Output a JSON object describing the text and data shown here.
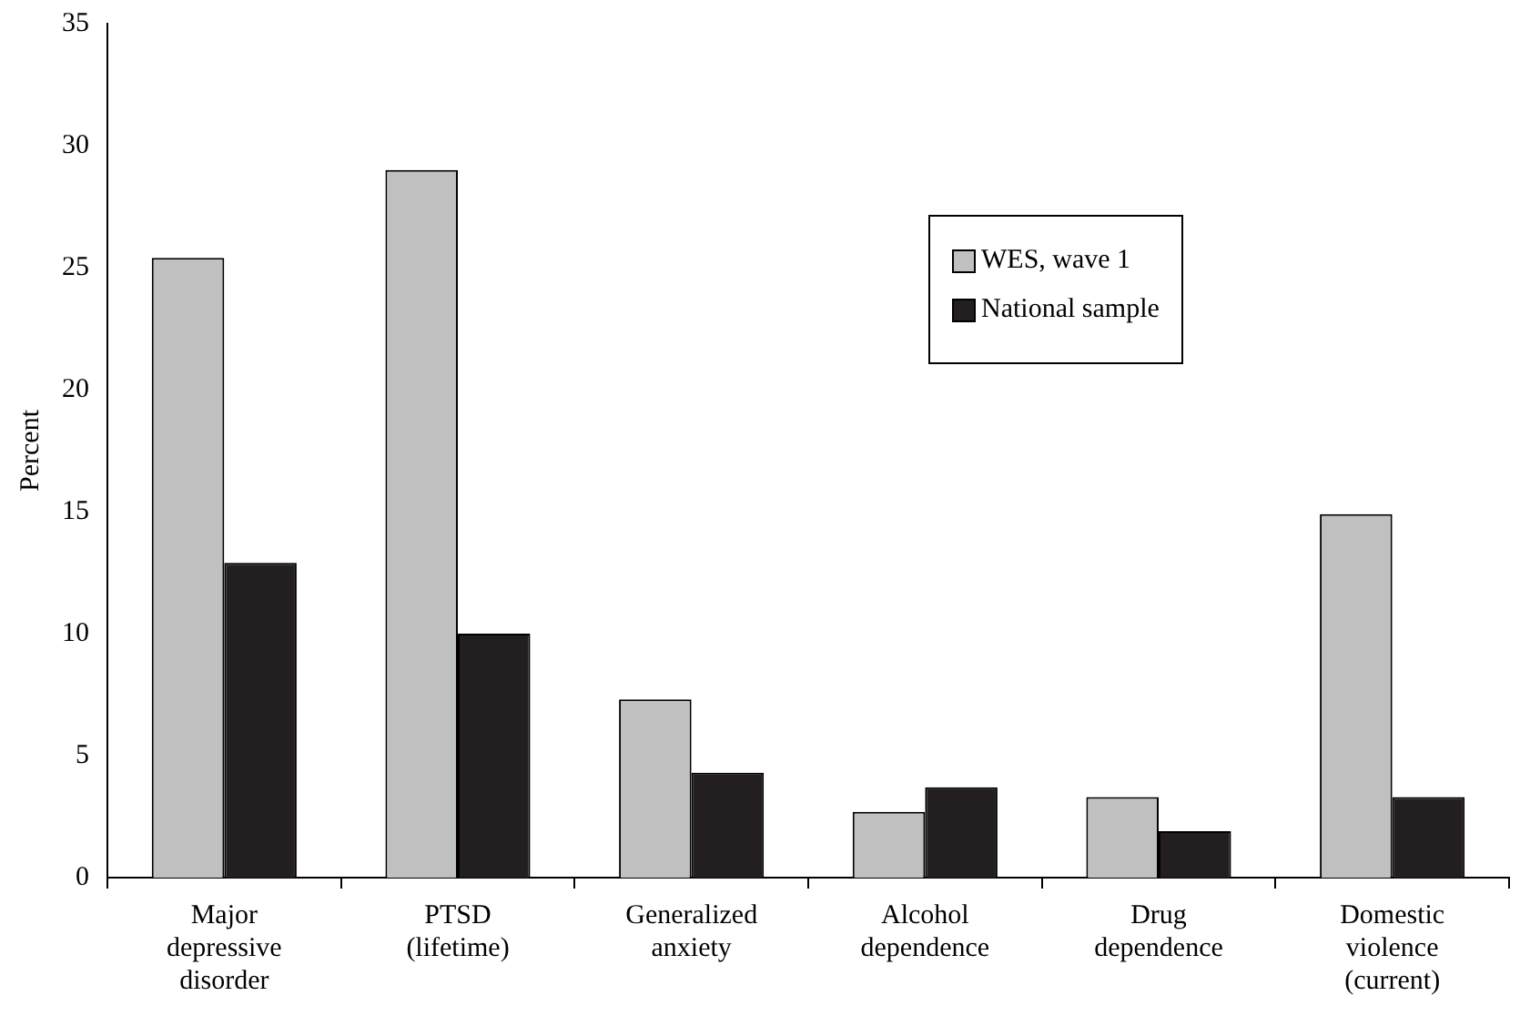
{
  "chart_data": {
    "type": "bar",
    "ylabel": "Percent",
    "categories": [
      "Major depressive disorder",
      "PTSD (lifetime)",
      "Generalized anxiety",
      "Alcohol dependence",
      "Drug dependence",
      "Domestic violence (current)"
    ],
    "series": [
      {
        "name": "WES, wave 1",
        "color": "#c0c0c0",
        "values": [
          25.4,
          29,
          7.3,
          2.7,
          3.3,
          14.9
        ]
      },
      {
        "name": "National sample",
        "color": "#231f20",
        "values": [
          12.9,
          10,
          4.3,
          3.7,
          1.9,
          3.3
        ]
      }
    ],
    "ylim": [
      0,
      35
    ],
    "yticks": [
      0,
      5,
      10,
      15,
      20,
      25,
      30,
      35
    ],
    "grid": false,
    "legend": "top right"
  }
}
